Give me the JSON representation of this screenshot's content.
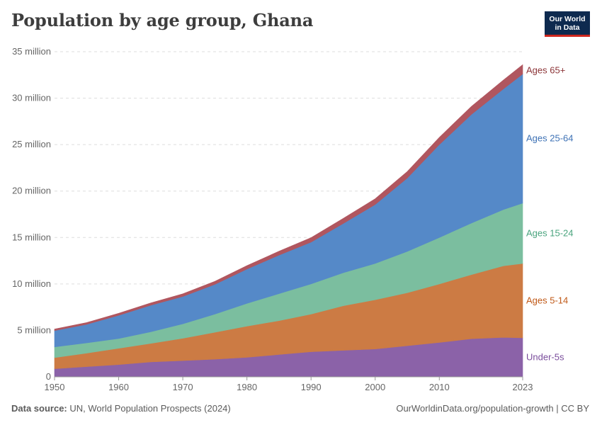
{
  "title": "Population by age group, Ghana",
  "logo": {
    "line1": "Our World",
    "line2": "in Data"
  },
  "footer": {
    "source_label": "Data source:",
    "source_text": "UN, World Population Prospects (2024)",
    "link_text": "OurWorldinData.org/population-growth | CC BY"
  },
  "chart_data": {
    "type": "area",
    "stacked": true,
    "x": [
      1950,
      1955,
      1960,
      1965,
      1970,
      1975,
      1980,
      1985,
      1990,
      1995,
      2000,
      2005,
      2010,
      2015,
      2020,
      2023
    ],
    "x_ticks": [
      1950,
      1960,
      1970,
      1980,
      1990,
      2000,
      2010,
      2023
    ],
    "y_ticks": [
      0,
      5000000,
      10000000,
      15000000,
      20000000,
      25000000,
      30000000,
      35000000
    ],
    "y_tick_labels": [
      "0",
      "5 million",
      "10 million",
      "15 million",
      "20 million",
      "25 million",
      "30 million",
      "35 million"
    ],
    "ylim": [
      0,
      35000000
    ],
    "grid": "horizontal dashed",
    "legend": "inline right",
    "series": [
      {
        "name": "Under-5s",
        "color": "#8b62a8",
        "label_color": "#7a4d9c",
        "values": [
          870000,
          1100000,
          1320000,
          1600000,
          1750000,
          1900000,
          2100000,
          2400000,
          2700000,
          2850000,
          3000000,
          3350000,
          3700000,
          4100000,
          4250000,
          4200000
        ]
      },
      {
        "name": "Ages 5-14",
        "color": "#cc7b44",
        "label_color": "#c05917",
        "values": [
          1200000,
          1450000,
          1750000,
          2000000,
          2400000,
          2900000,
          3350000,
          3650000,
          4050000,
          4800000,
          5300000,
          5700000,
          6300000,
          6900000,
          7700000,
          8000000
        ]
      },
      {
        "name": "Ages 15-24",
        "color": "#7bbe9f",
        "label_color": "#4aa47e",
        "values": [
          1150000,
          1100000,
          1050000,
          1250000,
          1550000,
          1950000,
          2450000,
          2900000,
          3250000,
          3550000,
          3900000,
          4450000,
          5000000,
          5550000,
          6050000,
          6500000
        ]
      },
      {
        "name": "Ages 25-64",
        "color": "#5589c8",
        "label_color": "#3e72b5",
        "values": [
          1750000,
          2000000,
          2500000,
          2850000,
          2950000,
          3200000,
          3700000,
          4150000,
          4500000,
          5300000,
          6350000,
          7900000,
          10000000,
          11700000,
          13000000,
          13900000
        ]
      },
      {
        "name": "Ages 65+",
        "color": "#b0565f",
        "label_color": "#8c3538",
        "values": [
          180000,
          190000,
          220000,
          250000,
          290000,
          330000,
          370000,
          420000,
          480000,
          550000,
          620000,
          700000,
          780000,
          860000,
          950000,
          1000000
        ]
      }
    ]
  }
}
